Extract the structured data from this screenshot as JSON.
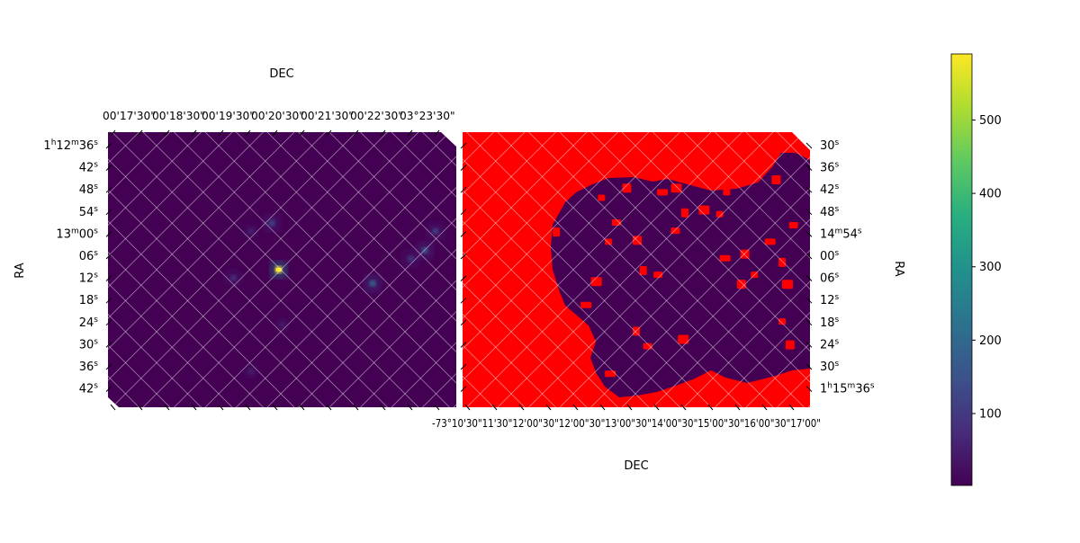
{
  "chart_data": [
    {
      "type": "heatmap",
      "panel": "left",
      "xlabel": "RA",
      "x2label": "DEC",
      "top_ticks": [
        "00'17'30\"",
        "00'18'30\"",
        "00'19'30\"",
        "00'20'30\"",
        "00'21'30\"",
        "00'22'30\"",
        "03°23'30\""
      ],
      "bottom_ticks": [],
      "left_ticks": [
        "1h12m36s",
        "42s",
        "48s",
        "54s",
        "13m00s",
        "06s",
        "12s",
        "18s",
        "24s",
        "30s",
        "36s",
        "42s"
      ],
      "left_tick_parts": [
        {
          "base": "1",
          "sups": [
            [
              "h",
              "12"
            ],
            [
              "m",
              "36"
            ],
            [
              "s",
              ""
            ]
          ]
        },
        {
          "base": "42",
          "sups": [
            [
              "s",
              ""
            ]
          ]
        },
        {
          "base": "48",
          "sups": [
            [
              "s",
              ""
            ]
          ]
        },
        {
          "base": "54",
          "sups": [
            [
              "s",
              ""
            ]
          ]
        },
        {
          "base": "13",
          "sups": [
            [
              "m",
              "00"
            ],
            [
              "s",
              ""
            ]
          ]
        },
        {
          "base": "06",
          "sups": [
            [
              "s",
              ""
            ]
          ]
        },
        {
          "base": "12",
          "sups": [
            [
              "s",
              ""
            ]
          ]
        },
        {
          "base": "18",
          "sups": [
            [
              "s",
              ""
            ]
          ]
        },
        {
          "base": "24",
          "sups": [
            [
              "s",
              ""
            ]
          ]
        },
        {
          "base": "30",
          "sups": [
            [
              "s",
              ""
            ]
          ]
        },
        {
          "base": "36",
          "sups": [
            [
              "s",
              ""
            ]
          ]
        },
        {
          "base": "42",
          "sups": [
            [
              "s",
              ""
            ]
          ]
        }
      ],
      "background_value": 10,
      "sources": [
        {
          "x": 0.49,
          "y": 0.5,
          "peak": 590
        },
        {
          "x": 0.47,
          "y": 0.33,
          "peak": 140
        },
        {
          "x": 0.76,
          "y": 0.55,
          "peak": 220
        },
        {
          "x": 0.91,
          "y": 0.43,
          "peak": 170
        },
        {
          "x": 0.94,
          "y": 0.36,
          "peak": 130
        },
        {
          "x": 0.87,
          "y": 0.46,
          "peak": 110
        },
        {
          "x": 0.36,
          "y": 0.53,
          "peak": 90
        },
        {
          "x": 0.41,
          "y": 0.36,
          "peak": 60
        },
        {
          "x": 0.5,
          "y": 0.7,
          "peak": 50
        },
        {
          "x": 0.41,
          "y": 0.87,
          "peak": 55
        }
      ],
      "grid": true
    },
    {
      "type": "heatmap",
      "panel": "right",
      "xlabel": "DEC",
      "ylabel": "RA",
      "mask_color": "#ff0000",
      "bottom_ticks": [
        "-73°10'30\"",
        "11'30\"",
        "12'00\"",
        "12'30\"",
        "13'00\"",
        "13'30\"",
        "14'00\"",
        "14'30\"",
        "15'00\"",
        "15'30\"",
        "16'00\"",
        "16'30\"",
        "17'00\""
      ],
      "bottom_ticks_display": "-73°10'30\"11'30\"12'00\"30\"12'00\"30\"13'00\"30\"14'00\"30\"15'00\"30\"16'00\"30\"17'00\"",
      "right_ticks": [
        "30s",
        "36s",
        "42s",
        "48s",
        "14m54s",
        "00s",
        "06s",
        "12s",
        "18s",
        "24s",
        "30s",
        "1h15m36s"
      ],
      "right_tick_parts": [
        {
          "base": "30",
          "sups": [
            [
              "s",
              ""
            ]
          ]
        },
        {
          "base": "36",
          "sups": [
            [
              "s",
              ""
            ]
          ]
        },
        {
          "base": "42",
          "sups": [
            [
              "s",
              ""
            ]
          ]
        },
        {
          "base": "48",
          "sups": [
            [
              "s",
              ""
            ]
          ]
        },
        {
          "base": "14",
          "sups": [
            [
              "m",
              "54"
            ],
            [
              "s",
              ""
            ]
          ]
        },
        {
          "base": "00",
          "sups": [
            [
              "s",
              ""
            ]
          ]
        },
        {
          "base": "06",
          "sups": [
            [
              "s",
              ""
            ]
          ]
        },
        {
          "base": "12",
          "sups": [
            [
              "s",
              ""
            ]
          ]
        },
        {
          "base": "18",
          "sups": [
            [
              "s",
              ""
            ]
          ]
        },
        {
          "base": "24",
          "sups": [
            [
              "s",
              ""
            ]
          ]
        },
        {
          "base": "30",
          "sups": [
            [
              "s",
              ""
            ]
          ]
        },
        {
          "base": "1",
          "sups": [
            [
              "h",
              "15"
            ],
            [
              "m",
              "36"
            ],
            [
              "s",
              ""
            ]
          ]
        }
      ],
      "mask_spots": [
        {
          "x": 0.4,
          "y": 0.24
        },
        {
          "x": 0.47,
          "y": 0.2
        },
        {
          "x": 0.57,
          "y": 0.22
        },
        {
          "x": 0.64,
          "y": 0.29
        },
        {
          "x": 0.61,
          "y": 0.36
        },
        {
          "x": 0.69,
          "y": 0.28
        },
        {
          "x": 0.74,
          "y": 0.3
        },
        {
          "x": 0.81,
          "y": 0.44
        },
        {
          "x": 0.88,
          "y": 0.4
        },
        {
          "x": 0.92,
          "y": 0.47
        },
        {
          "x": 0.95,
          "y": 0.34
        },
        {
          "x": 0.93,
          "y": 0.55
        },
        {
          "x": 0.84,
          "y": 0.52
        },
        {
          "x": 0.8,
          "y": 0.55
        },
        {
          "x": 0.75,
          "y": 0.46
        },
        {
          "x": 0.52,
          "y": 0.5
        },
        {
          "x": 0.56,
          "y": 0.52
        },
        {
          "x": 0.38,
          "y": 0.54
        },
        {
          "x": 0.42,
          "y": 0.4
        },
        {
          "x": 0.5,
          "y": 0.39
        },
        {
          "x": 0.35,
          "y": 0.63
        },
        {
          "x": 0.5,
          "y": 0.72
        },
        {
          "x": 0.53,
          "y": 0.78
        },
        {
          "x": 0.63,
          "y": 0.75
        },
        {
          "x": 0.92,
          "y": 0.69
        },
        {
          "x": 0.94,
          "y": 0.77
        },
        {
          "x": 0.42,
          "y": 0.88
        },
        {
          "x": 0.27,
          "y": 0.36
        },
        {
          "x": 0.44,
          "y": 0.33
        },
        {
          "x": 0.61,
          "y": 0.2
        },
        {
          "x": 0.76,
          "y": 0.22
        },
        {
          "x": 0.9,
          "y": 0.17
        }
      ],
      "grid": true
    }
  ],
  "colorbar": {
    "ticks": [
      100,
      200,
      300,
      400,
      500
    ],
    "tick_labels": [
      "100",
      "200",
      "300",
      "400",
      "500"
    ],
    "vmin": 2,
    "vmax": 590,
    "colormap": "viridis"
  }
}
